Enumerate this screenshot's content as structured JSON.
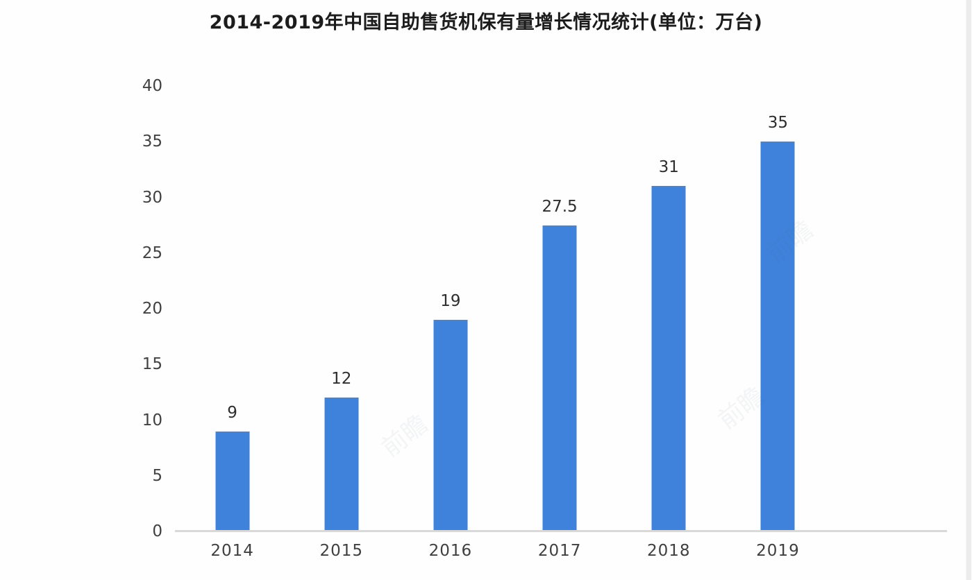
{
  "title": "2014-2019年中国自助售货机保有量增长情况统计(单位：万台)",
  "watermark_text": "前瞻",
  "chart_data": {
    "type": "bar",
    "title": "2014-2019年中国自助售货机保有量增长情况统计(单位：万台)",
    "unit": "万台",
    "categories": [
      "2014",
      "2015",
      "2016",
      "2017",
      "2018",
      "2019"
    ],
    "values": [
      9,
      12,
      19,
      27.5,
      31,
      35
    ],
    "value_labels": [
      "9",
      "12",
      "19",
      "27.5",
      "31",
      "35"
    ],
    "xlabel": "",
    "ylabel": "",
    "ylim": [
      0,
      40
    ],
    "yticks": [
      0,
      5,
      10,
      15,
      20,
      25,
      30,
      35,
      40
    ],
    "grid": false,
    "legend_position": "none",
    "bar_color": "#3e82dc",
    "axis_line_color": "#d9d9d9",
    "tick_label_color": "#414141",
    "value_label_color": "#2e2e2e",
    "title_color": "#1c1c1c"
  }
}
